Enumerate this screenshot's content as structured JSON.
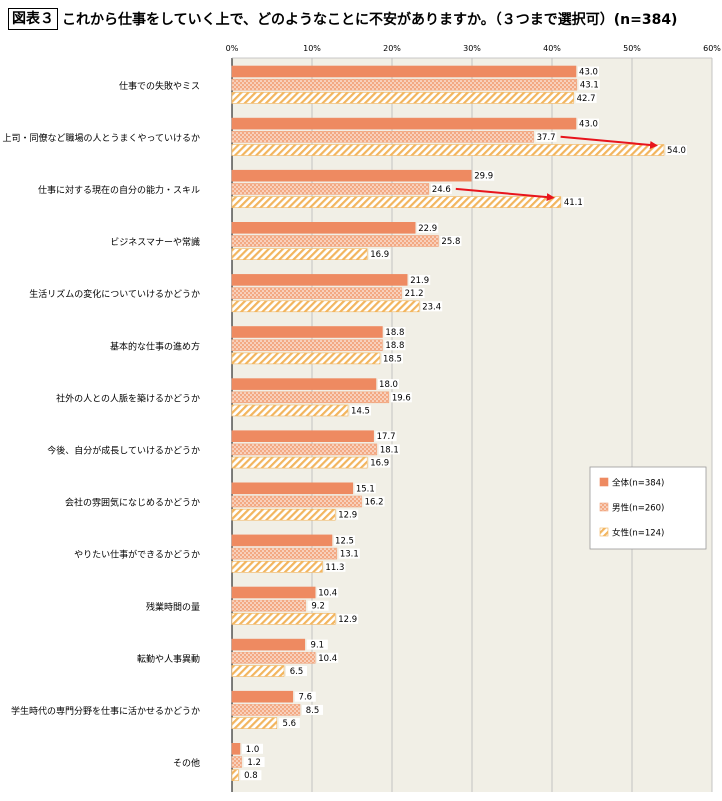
{
  "figure_label": "図表３",
  "figure_title": "これから仕事をしていく上で、どのようなことに不安がありますか。（３つまで選択可）(n=384)",
  "chart_data": {
    "type": "bar",
    "orientation": "horizontal",
    "title": "",
    "xlabel": "",
    "ylabel": "",
    "xlim": [
      0,
      60
    ],
    "xticks": [
      "0%",
      "10%",
      "20%",
      "30%",
      "40%",
      "50%",
      "60%"
    ],
    "grid": true,
    "legend_position": "right",
    "categories": [
      "仕事での失敗やミス",
      "上司・同僚など職場の人とうまくやっていけるか",
      "仕事に対する現在の自分の能力・スキル",
      "ビジネスマナーや常識",
      "生活リズムの変化についていけるかどうか",
      "基本的な仕事の進め方",
      "社外の人との人脈を築けるかどうか",
      "今後、自分が成長していけるかどうか",
      "会社の雰囲気になじめるかどうか",
      "やりたい仕事ができるかどうか",
      "残業時間の量",
      "転勤や人事異動",
      "学生時代の専門分野を仕事に活かせるかどうか",
      "その他"
    ],
    "series": [
      {
        "name": "全体(n=384)",
        "color": "#ee8a61",
        "pattern": "solid",
        "values": [
          43.0,
          43.0,
          29.9,
          22.9,
          21.9,
          18.8,
          18.0,
          17.7,
          15.1,
          12.5,
          10.4,
          9.1,
          7.6,
          1.0
        ]
      },
      {
        "name": "男性(n=260)",
        "color": "#f3a983",
        "pattern": "dots",
        "values": [
          43.1,
          37.7,
          24.6,
          25.8,
          21.2,
          18.8,
          19.6,
          18.1,
          16.2,
          13.1,
          9.2,
          10.4,
          8.5,
          1.2
        ]
      },
      {
        "name": "女性(n=124)",
        "color": "#f2b55e",
        "pattern": "diagonal",
        "values": [
          42.7,
          54.0,
          41.1,
          16.9,
          23.4,
          18.5,
          14.5,
          16.9,
          12.9,
          11.3,
          12.9,
          6.5,
          5.6,
          0.8
        ]
      }
    ],
    "annotations": [
      {
        "type": "arrow",
        "category_index": 1,
        "from_series": 1,
        "to_series": 2,
        "color": "#e8141c"
      },
      {
        "type": "arrow",
        "category_index": 2,
        "from_series": 1,
        "to_series": 2,
        "color": "#e8141c"
      }
    ]
  }
}
